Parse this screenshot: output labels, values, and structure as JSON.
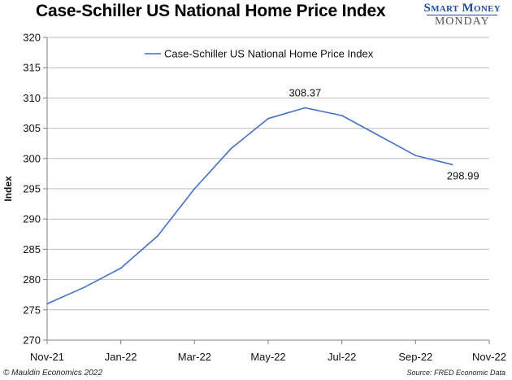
{
  "header": {
    "title": "Case-Schiller US National Home Price Index",
    "brand_top": "Smart Money",
    "brand_bottom": "MONDAY"
  },
  "footer": {
    "left": "© Mauldin Economics 2022",
    "right": "Source: FRED Economic Data"
  },
  "chart_data": {
    "type": "line",
    "ylabel": "Index",
    "xlabel": "",
    "ylim": [
      270,
      320
    ],
    "yticks": [
      270,
      275,
      280,
      285,
      290,
      295,
      300,
      305,
      310,
      315,
      320
    ],
    "xticks": [
      "Nov-21",
      "Jan-22",
      "Mar-22",
      "May-22",
      "Jul-22",
      "Sep-22",
      "Nov-22"
    ],
    "legend": "top-center",
    "series": [
      {
        "name": "Case-Schiller US National Home Price Index",
        "color": "#4472c4",
        "x": [
          "Nov-21",
          "Dec-21",
          "Jan-22",
          "Feb-22",
          "Mar-22",
          "Apr-22",
          "May-22",
          "Jun-22",
          "Jul-22",
          "Aug-22",
          "Sep-22",
          "Oct-22"
        ],
        "values": [
          276.0,
          278.7,
          281.9,
          287.2,
          295.0,
          301.7,
          306.6,
          308.37,
          307.1,
          303.8,
          300.5,
          298.99
        ]
      }
    ],
    "data_labels": [
      {
        "text": "308.37",
        "index": 7
      },
      {
        "text": "298.99",
        "index": 11
      }
    ]
  }
}
